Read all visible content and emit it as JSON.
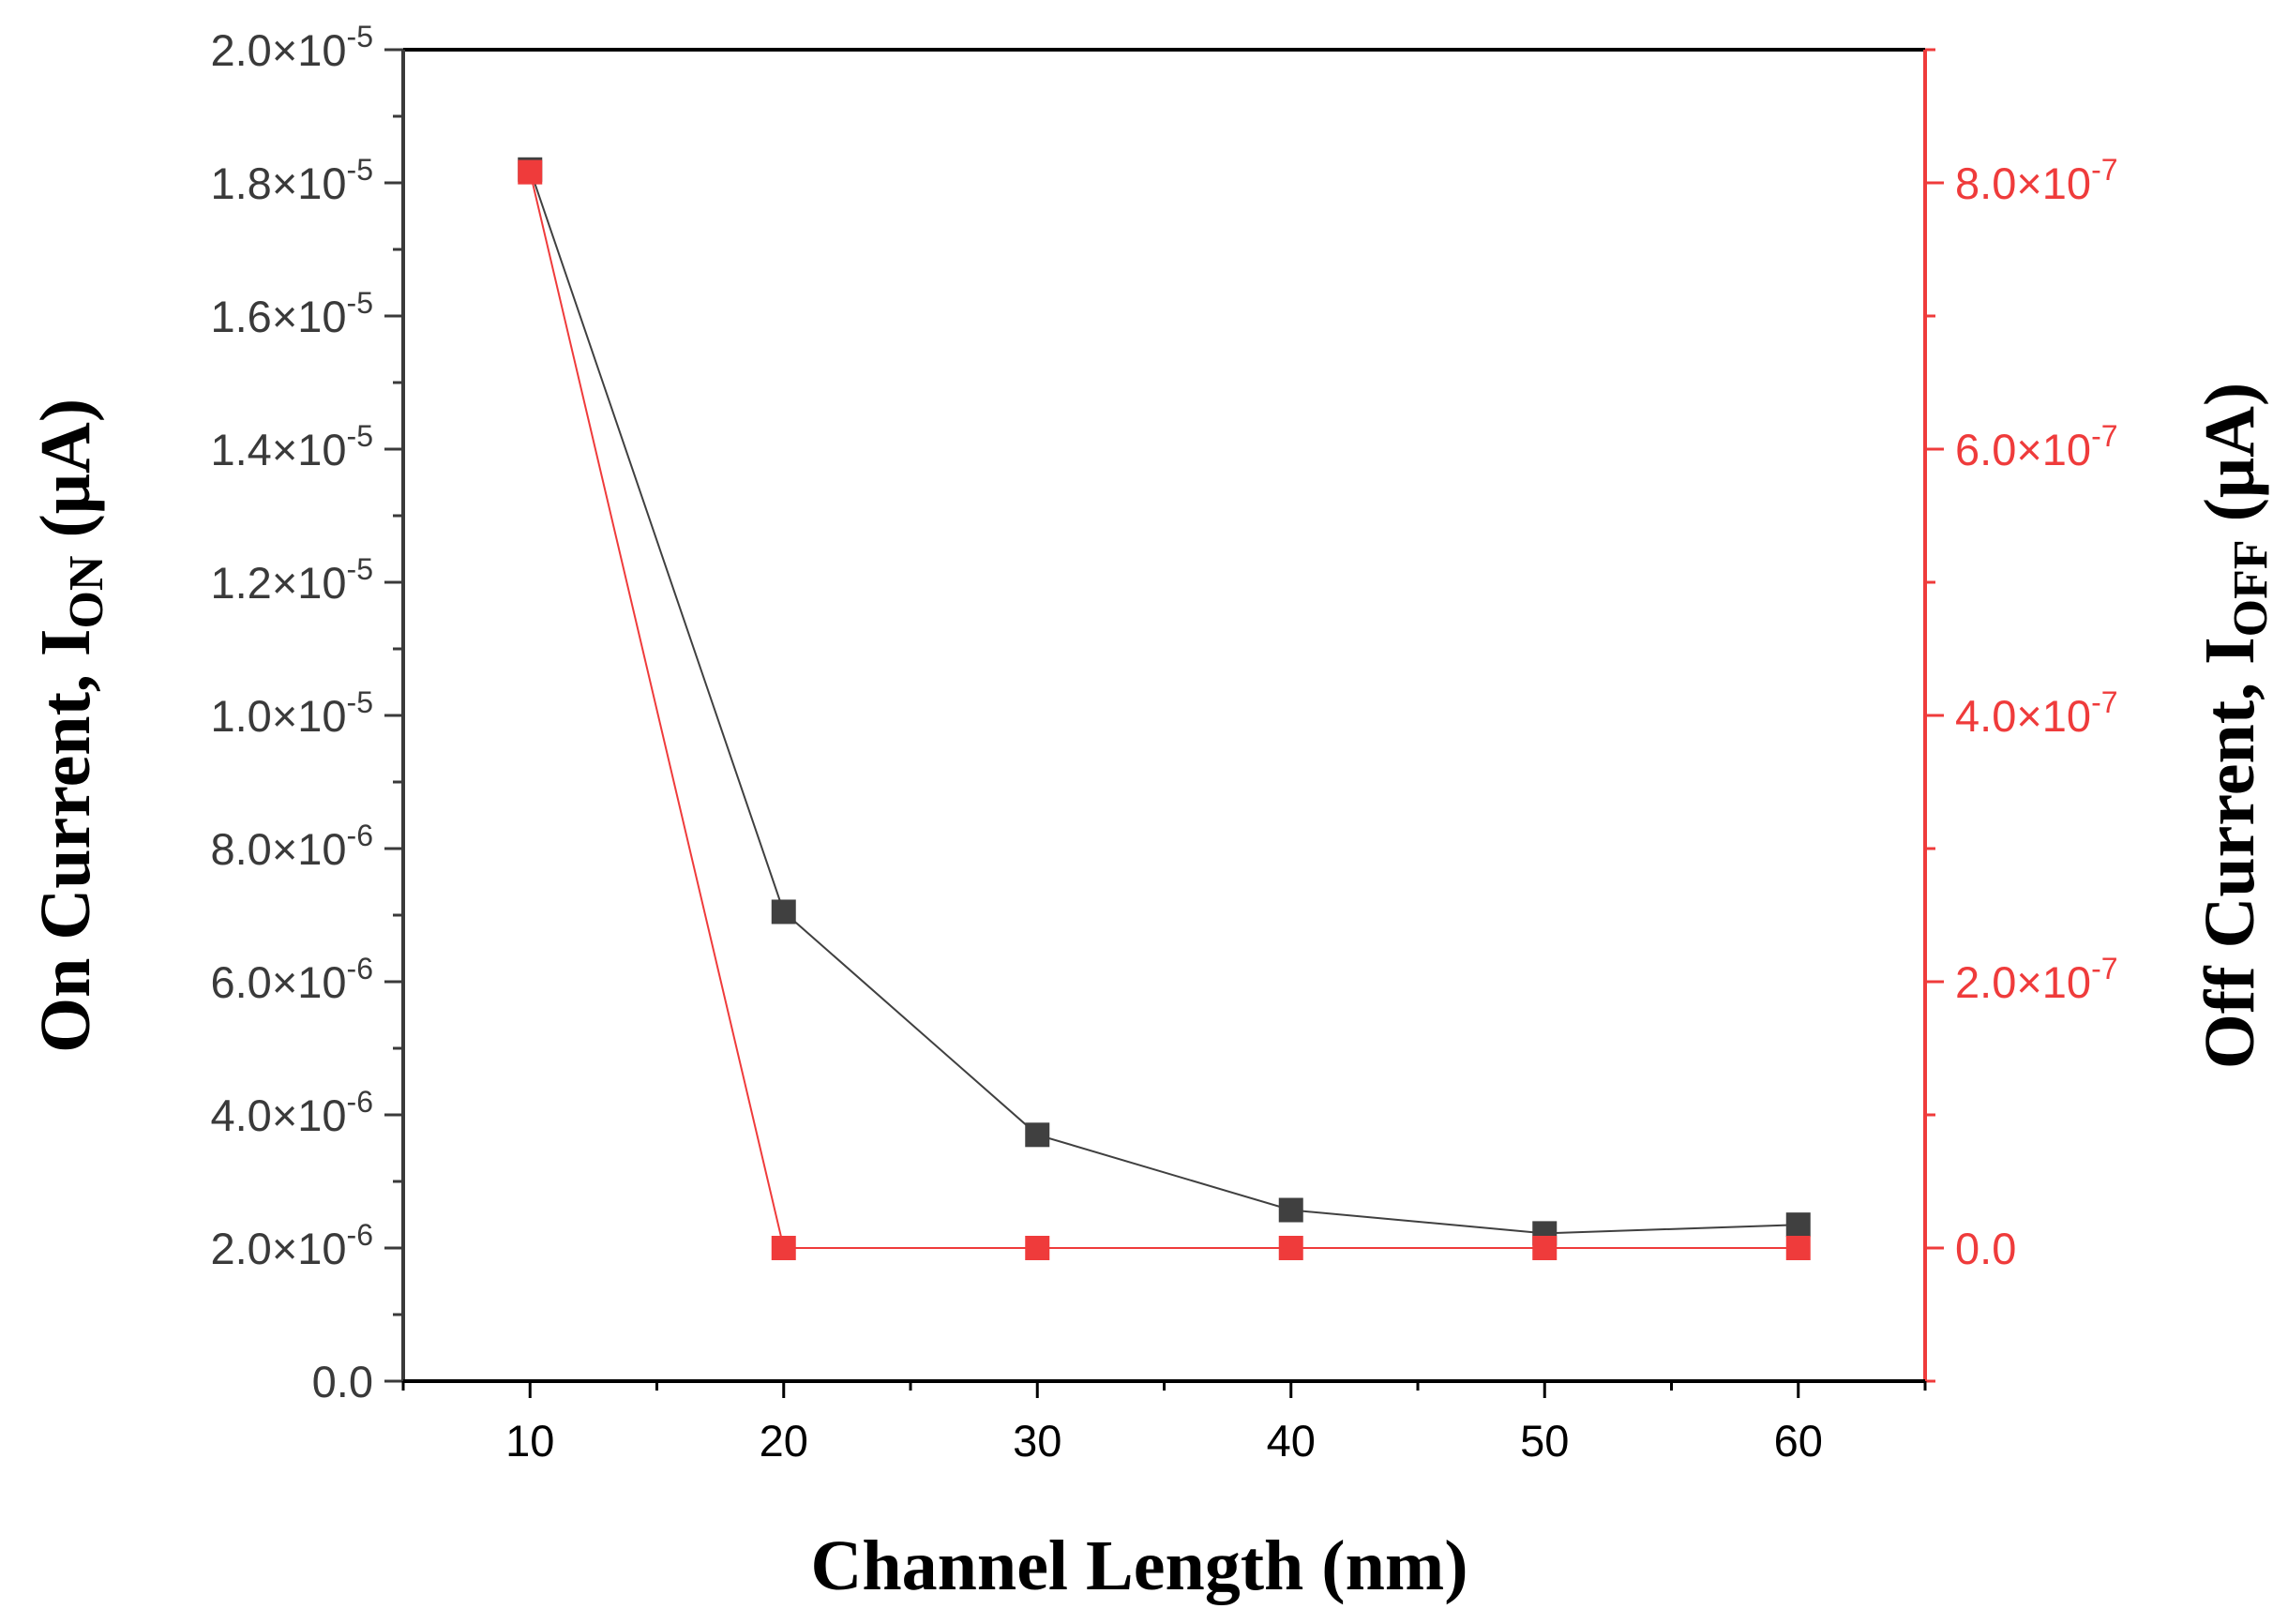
{
  "chart_data": {
    "type": "line",
    "xlabel": "Channel Length (nm)",
    "ylabel": {
      "main": "On Current, I",
      "sub": "ON",
      "unit": " (μA)"
    },
    "y2label": {
      "main": "Off Current, I",
      "sub": "OFF",
      "unit": " (μA)"
    },
    "x": [
      10,
      20,
      30,
      40,
      50,
      60
    ],
    "xlim": [
      5,
      65
    ],
    "xticks": [
      10,
      20,
      30,
      40,
      50,
      60
    ],
    "ylim": [
      0,
      2e-05
    ],
    "y2lim": [
      -1e-07,
      9e-07
    ],
    "yticks": [
      {
        "value": 0,
        "mant": "0.0",
        "exp": ""
      },
      {
        "value": 2e-06,
        "mant": "2.0×10",
        "exp": "-6"
      },
      {
        "value": 4e-06,
        "mant": "4.0×10",
        "exp": "-6"
      },
      {
        "value": 6e-06,
        "mant": "6.0×10",
        "exp": "-6"
      },
      {
        "value": 8e-06,
        "mant": "8.0×10",
        "exp": "-6"
      },
      {
        "value": 1e-05,
        "mant": "1.0×10",
        "exp": "-5"
      },
      {
        "value": 1.2e-05,
        "mant": "1.2×10",
        "exp": "-5"
      },
      {
        "value": 1.4e-05,
        "mant": "1.4×10",
        "exp": "-5"
      },
      {
        "value": 1.6e-05,
        "mant": "1.6×10",
        "exp": "-5"
      },
      {
        "value": 1.8e-05,
        "mant": "1.8×10",
        "exp": "-5"
      },
      {
        "value": 2e-05,
        "mant": "2.0×10",
        "exp": "-5"
      }
    ],
    "y2ticks": [
      {
        "value": 0,
        "mant": "0.0",
        "exp": ""
      },
      {
        "value": 2e-07,
        "mant": "2.0×10",
        "exp": "-7"
      },
      {
        "value": 4e-07,
        "mant": "4.0×10",
        "exp": "-7"
      },
      {
        "value": 6e-07,
        "mant": "6.0×10",
        "exp": "-7"
      },
      {
        "value": 8e-07,
        "mant": "8.0×10",
        "exp": "-7"
      }
    ],
    "series": [
      {
        "axis": "left",
        "color": "#404040",
        "marker": "square",
        "values": [
          1.82e-05,
          7.05e-06,
          3.7e-06,
          2.57e-06,
          2.22e-06,
          2.35e-06
        ]
      },
      {
        "axis": "right",
        "color": "#ef3b3b",
        "marker": "square",
        "values": [
          8.08e-07,
          0,
          0,
          0,
          0,
          0
        ]
      }
    ],
    "grid": false,
    "colors": {
      "left_axis": "#3a3a3a",
      "right_axis": "#ef3b3b",
      "frame": "#000000"
    }
  }
}
